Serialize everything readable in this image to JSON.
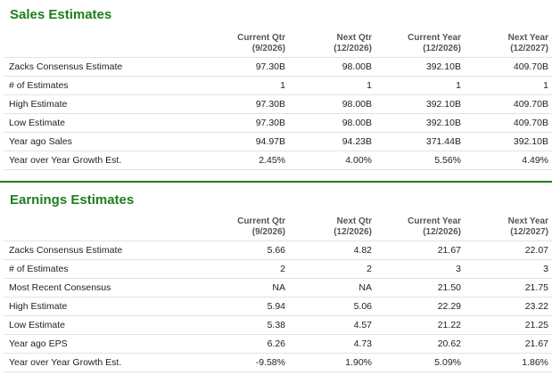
{
  "sales": {
    "title": "Sales Estimates",
    "columns": [
      {
        "line1": "Current Qtr",
        "line2": "(9/2026)"
      },
      {
        "line1": "Next Qtr",
        "line2": "(12/2026)"
      },
      {
        "line1": "Current Year",
        "line2": "(12/2026)"
      },
      {
        "line1": "Next Year",
        "line2": "(12/2027)"
      }
    ],
    "rows": [
      {
        "label": "Zacks Consensus Estimate",
        "values": [
          "97.30B",
          "98.00B",
          "392.10B",
          "409.70B"
        ]
      },
      {
        "label": "# of Estimates",
        "values": [
          "1",
          "1",
          "1",
          "1"
        ]
      },
      {
        "label": "High Estimate",
        "values": [
          "97.30B",
          "98.00B",
          "392.10B",
          "409.70B"
        ]
      },
      {
        "label": "Low Estimate",
        "values": [
          "97.30B",
          "98.00B",
          "392.10B",
          "409.70B"
        ]
      },
      {
        "label": "Year ago Sales",
        "values": [
          "94.97B",
          "94.23B",
          "371.44B",
          "392.10B"
        ]
      },
      {
        "label": "Year over Year Growth Est.",
        "values": [
          "2.45%",
          "4.00%",
          "5.56%",
          "4.49%"
        ]
      }
    ]
  },
  "earnings": {
    "title": "Earnings Estimates",
    "columns": [
      {
        "line1": "Current Qtr",
        "line2": "(9/2026)"
      },
      {
        "line1": "Next Qtr",
        "line2": "(12/2026)"
      },
      {
        "line1": "Current Year",
        "line2": "(12/2026)"
      },
      {
        "line1": "Next Year",
        "line2": "(12/2027)"
      }
    ],
    "rows": [
      {
        "label": "Zacks Consensus Estimate",
        "values": [
          "5.66",
          "4.82",
          "21.67",
          "22.07"
        ]
      },
      {
        "label": "# of Estimates",
        "values": [
          "2",
          "2",
          "3",
          "3"
        ]
      },
      {
        "label": "Most Recent Consensus",
        "values": [
          "NA",
          "NA",
          "21.50",
          "21.75"
        ]
      },
      {
        "label": "High Estimate",
        "values": [
          "5.94",
          "5.06",
          "22.29",
          "23.22"
        ]
      },
      {
        "label": "Low Estimate",
        "values": [
          "5.38",
          "4.57",
          "21.22",
          "21.25"
        ]
      },
      {
        "label": "Year ago EPS",
        "values": [
          "6.26",
          "4.73",
          "20.62",
          "21.67"
        ]
      },
      {
        "label": "Year over Year Growth Est.",
        "values": [
          "-9.58%",
          "1.90%",
          "5.09%",
          "1.86%"
        ]
      }
    ]
  },
  "colors": {
    "title_green": "#1e7d1e",
    "divider_green": "#1e7d1e",
    "row_border": "#e3e3e3",
    "header_text": "#555555"
  }
}
